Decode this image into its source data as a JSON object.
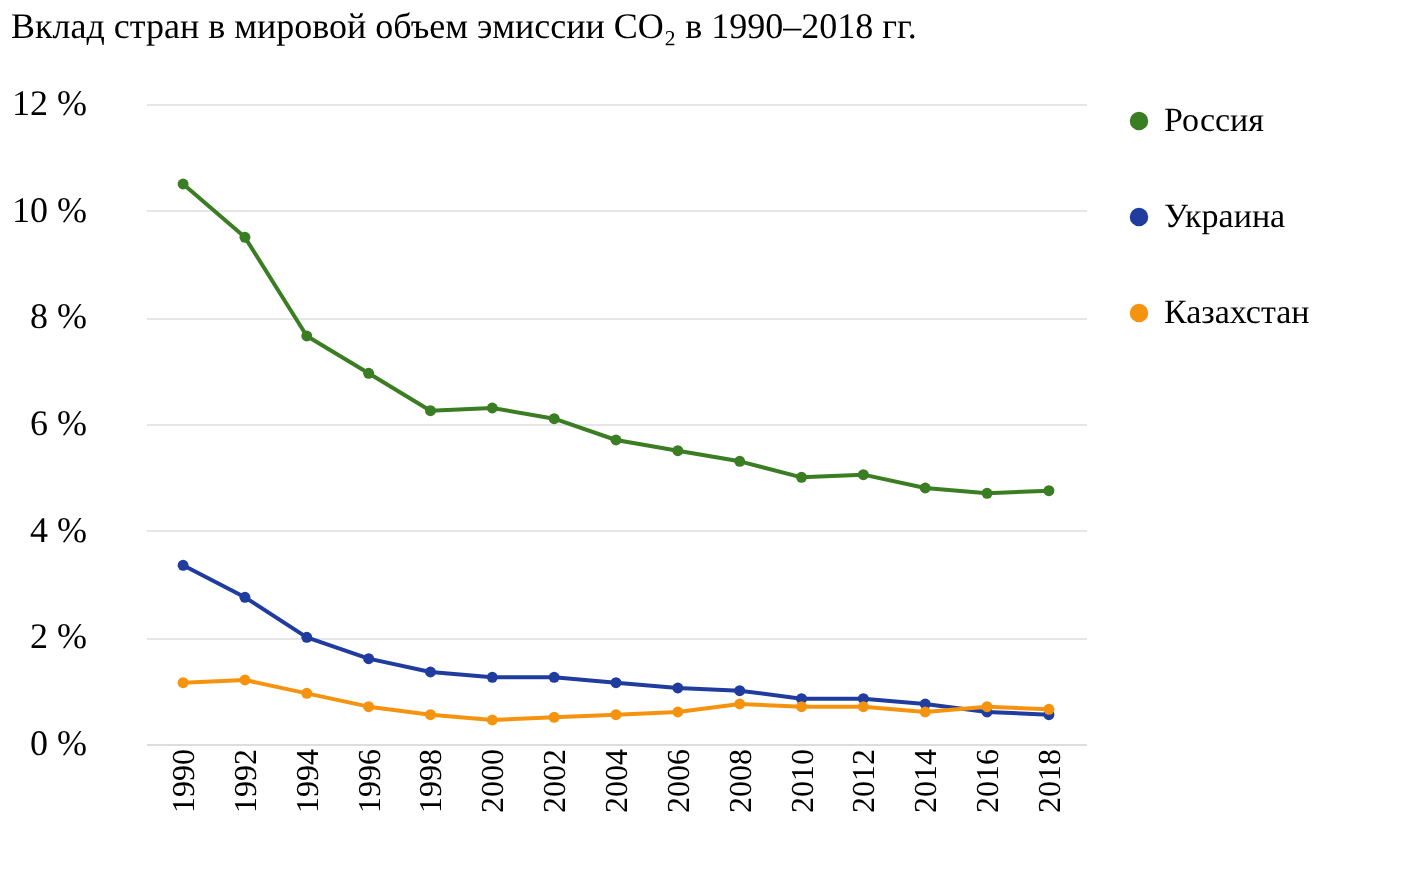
{
  "chart_data": {
    "type": "line",
    "title": "Вклад стран в мировой объем эмиссии CO₂ в 1990–2018 гг.",
    "categories": [
      "1990",
      "1992",
      "1994",
      "1996",
      "1998",
      "2000",
      "2002",
      "2004",
      "2006",
      "2008",
      "2010",
      "2012",
      "2014",
      "2016",
      "2018"
    ],
    "series": [
      {
        "name": "Россия",
        "color": "#3a7d22",
        "values": [
          10.5,
          9.5,
          7.65,
          6.95,
          6.25,
          6.3,
          6.1,
          5.7,
          5.5,
          5.3,
          5.0,
          5.05,
          4.8,
          4.7,
          4.75
        ]
      },
      {
        "name": "Украина",
        "color": "#1f3c9e",
        "values": [
          3.35,
          2.75,
          2.0,
          1.6,
          1.35,
          1.25,
          1.25,
          1.15,
          1.05,
          1.0,
          0.85,
          0.85,
          0.75,
          0.6,
          0.55
        ]
      },
      {
        "name": "Казахстан",
        "color": "#f5930f",
        "values": [
          1.15,
          1.2,
          0.95,
          0.7,
          0.55,
          0.45,
          0.5,
          0.55,
          0.6,
          0.75,
          0.7,
          0.7,
          0.6,
          0.7,
          0.65
        ]
      }
    ],
    "ylim": [
      0,
      12
    ],
    "yticks": [
      {
        "value": 0,
        "label": "0 %"
      },
      {
        "value": 2,
        "label": "2 %"
      },
      {
        "value": 4,
        "label": "4 %"
      },
      {
        "value": 6,
        "label": "6 %"
      },
      {
        "value": 8,
        "label": "8 %"
      },
      {
        "value": 10,
        "label": "10 %"
      },
      {
        "value": 12,
        "label": "12 %"
      }
    ],
    "grid": "y",
    "legend": "right",
    "marker": "circle",
    "line_style": "solid"
  }
}
